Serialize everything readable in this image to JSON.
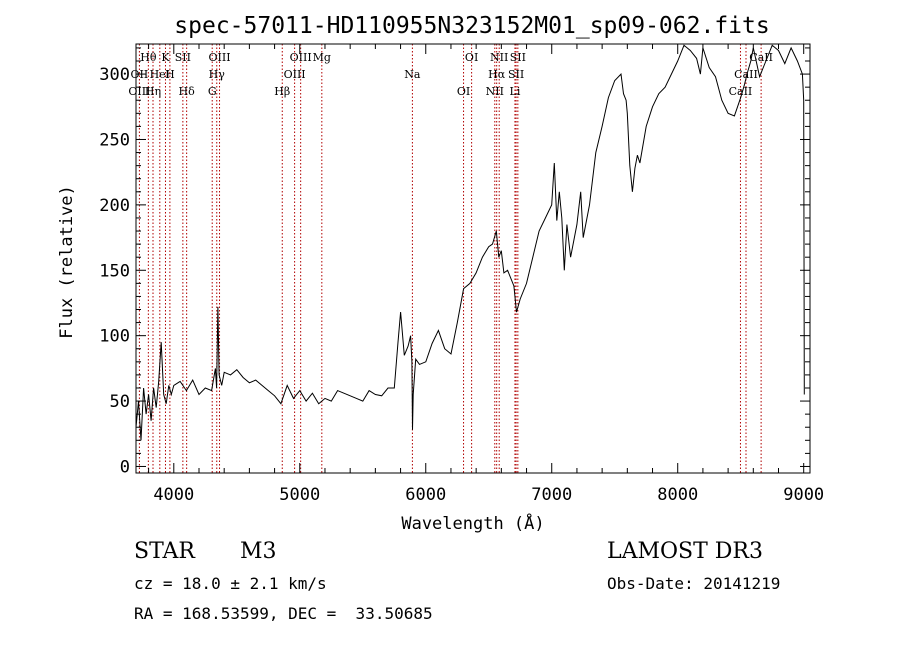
{
  "chart_data": {
    "type": "line",
    "title": "spec-57011-HD110955N323152M01_sp09-062.fits",
    "xlabel": "Wavelength (Å)",
    "ylabel": "Flux (relative)",
    "xlim": [
      3700,
      9050
    ],
    "ylim": [
      -5,
      323
    ],
    "xticks": [
      4000,
      5000,
      6000,
      7000,
      8000,
      9000
    ],
    "yticks": [
      0,
      50,
      100,
      150,
      200,
      250,
      300
    ],
    "series": [
      {
        "name": "flux",
        "x": [
          3700,
          3720,
          3740,
          3760,
          3780,
          3800,
          3820,
          3840,
          3860,
          3880,
          3900,
          3920,
          3940,
          3960,
          3980,
          4000,
          4050,
          4100,
          4150,
          4200,
          4250,
          4300,
          4330,
          4340,
          4350,
          4360,
          4380,
          4400,
          4450,
          4500,
          4550,
          4600,
          4650,
          4700,
          4750,
          4800,
          4850,
          4900,
          4950,
          5000,
          5050,
          5100,
          5150,
          5200,
          5250,
          5300,
          5350,
          5400,
          5450,
          5500,
          5550,
          5600,
          5650,
          5700,
          5750,
          5780,
          5800,
          5830,
          5860,
          5880,
          5890,
          5895,
          5900,
          5920,
          5950,
          6000,
          6050,
          6100,
          6150,
          6200,
          6250,
          6300,
          6350,
          6400,
          6450,
          6500,
          6530,
          6560,
          6580,
          6600,
          6620,
          6650,
          6700,
          6720,
          6750,
          6800,
          6850,
          6900,
          6950,
          7000,
          7020,
          7040,
          7060,
          7080,
          7100,
          7120,
          7150,
          7200,
          7230,
          7250,
          7300,
          7350,
          7400,
          7450,
          7500,
          7550,
          7570,
          7590,
          7600,
          7620,
          7640,
          7660,
          7680,
          7700,
          7750,
          7800,
          7850,
          7900,
          7950,
          8000,
          8050,
          8100,
          8150,
          8180,
          8200,
          8250,
          8300,
          8350,
          8400,
          8450,
          8500,
          8530,
          8550,
          8580,
          8600,
          8650,
          8700,
          8750,
          8800,
          8850,
          8900,
          8950,
          8990,
          9000,
          9005
        ],
        "values": [
          30,
          50,
          20,
          60,
          40,
          55,
          35,
          60,
          45,
          65,
          95,
          55,
          48,
          62,
          55,
          62,
          65,
          58,
          66,
          55,
          60,
          58,
          75,
          60,
          122,
          70,
          62,
          72,
          70,
          74,
          68,
          64,
          66,
          62,
          58,
          54,
          48,
          62,
          52,
          58,
          50,
          56,
          48,
          52,
          50,
          58,
          56,
          54,
          52,
          50,
          58,
          55,
          54,
          60,
          60,
          95,
          118,
          85,
          92,
          100,
          80,
          28,
          55,
          82,
          78,
          80,
          94,
          104,
          90,
          86,
          110,
          136,
          140,
          148,
          160,
          168,
          170,
          180,
          160,
          165,
          148,
          150,
          138,
          118,
          128,
          140,
          160,
          180,
          190,
          200,
          232,
          188,
          210,
          190,
          150,
          185,
          160,
          185,
          210,
          175,
          200,
          240,
          260,
          282,
          295,
          300,
          285,
          280,
          270,
          230,
          210,
          228,
          238,
          232,
          260,
          275,
          285,
          290,
          300,
          310,
          322,
          318,
          312,
          300,
          320,
          305,
          298,
          280,
          270,
          268,
          282,
          292,
          300,
          310,
          320,
          298,
          310,
          322,
          318,
          308,
          320,
          310,
          300,
          280,
          55
        ]
      }
    ],
    "line_ids": [
      {
        "label": "Hθ",
        "wavelength": 3798
      },
      {
        "label": "OII",
        "wavelength": 3727
      },
      {
        "label": "OIII",
        "wavelength": 3727
      },
      {
        "label": "K",
        "wavelength": 3934
      },
      {
        "label": "HeI",
        "wavelength": 3889
      },
      {
        "label": "Hη",
        "wavelength": 3835
      },
      {
        "label": "SII",
        "wavelength": 4072
      },
      {
        "label": "H",
        "wavelength": 3969
      },
      {
        "label": "Hδ",
        "wavelength": 4102
      },
      {
        "label": "OIII",
        "wavelength": 4363
      },
      {
        "label": "Hγ",
        "wavelength": 4341
      },
      {
        "label": "G",
        "wavelength": 4305
      },
      {
        "label": "OIII",
        "wavelength": 5007
      },
      {
        "label": "OIII",
        "wavelength": 4959
      },
      {
        "label": "Hβ",
        "wavelength": 4861
      },
      {
        "label": "Mg",
        "wavelength": 5175
      },
      {
        "label": "Na",
        "wavelength": 5894
      },
      {
        "label": "OI",
        "wavelength": 6300
      },
      {
        "label": "OI",
        "wavelength": 6364
      },
      {
        "label": "Hα",
        "wavelength": 6563
      },
      {
        "label": "NII",
        "wavelength": 6548
      },
      {
        "label": "NII",
        "wavelength": 6583
      },
      {
        "label": "SII",
        "wavelength": 6717
      },
      {
        "label": "Li",
        "wavelength": 6708
      },
      {
        "label": "SII",
        "wavelength": 6731
      },
      {
        "label": "CaII",
        "wavelength": 8542
      },
      {
        "label": "CaII",
        "wavelength": 8498
      },
      {
        "label": "CaII",
        "wavelength": 8662
      }
    ]
  },
  "info": {
    "class_label": "STAR",
    "subclass": "M3",
    "survey": "LAMOST DR3",
    "cz": "cz = 18.0 ± 2.1 km/s",
    "obs_date": "Obs-Date: 20141219",
    "coords": "RA = 168.53599, DEC =  33.50685"
  },
  "colors": {
    "line_marker": "#b00000",
    "trace": "#000000"
  }
}
